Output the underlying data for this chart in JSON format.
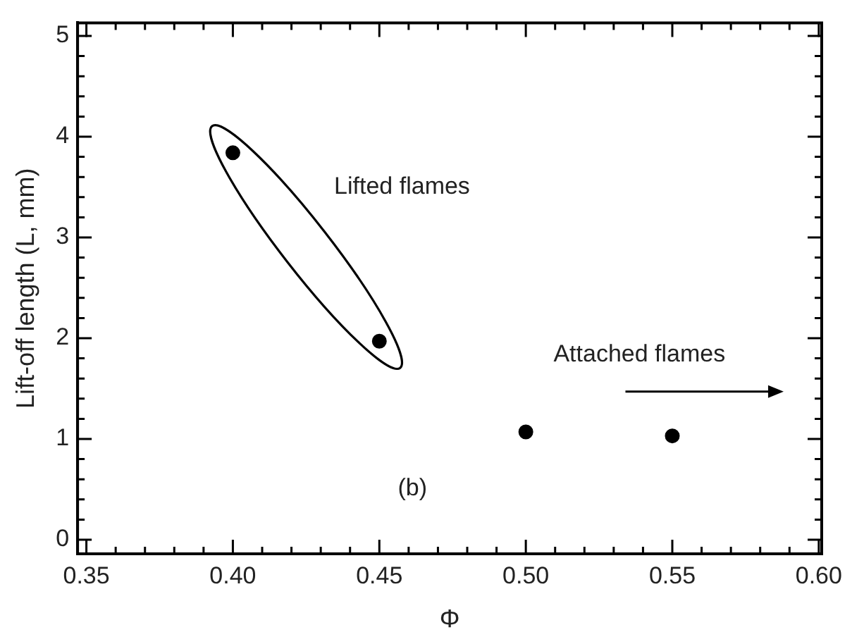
{
  "chart_data": {
    "type": "scatter",
    "xlabel": "Φ",
    "ylabel": "Lift-off length (L, mm)",
    "x": [
      0.4,
      0.45,
      0.5,
      0.55
    ],
    "series": [
      {
        "color": "#000000",
        "values": [
          3.84,
          1.97,
          1.07,
          1.03
        ]
      }
    ],
    "marker": "circle",
    "legend": false,
    "grid": false,
    "xlim": [
      0.347,
      0.601
    ],
    "xticks": [
      {
        "value": 0.35,
        "label": "0.35"
      },
      {
        "value": 0.4,
        "label": "0.40"
      },
      {
        "value": 0.45,
        "label": "0.45"
      },
      {
        "value": 0.5,
        "label": "0.50"
      },
      {
        "value": 0.55,
        "label": "0.55"
      },
      {
        "value": 0.6,
        "label": "0.60"
      }
    ],
    "ylim": [
      -0.14,
      5.13
    ],
    "yticks": [
      0,
      1,
      2,
      3,
      4,
      5
    ],
    "annotations": [
      "Lifted flames",
      "Attached flames",
      "(b)"
    ]
  }
}
